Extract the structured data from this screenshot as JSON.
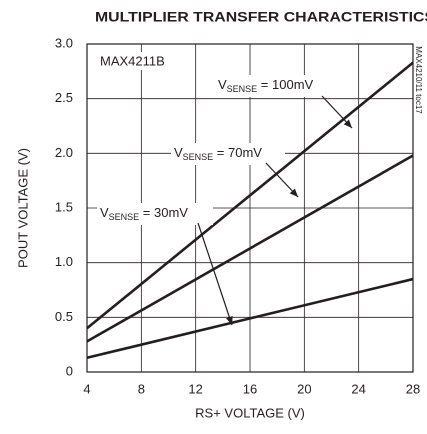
{
  "chart_data": {
    "type": "line",
    "title": "MULTIPLIER TRANSFER CHARACTERISTICS",
    "xlabel": "RS+ VOLTAGE (V)",
    "ylabel": "POUT VOLTAGE (V)",
    "part_label": "MAX4211B",
    "figure_id": "MAX4210/11 toc17",
    "x": [
      4,
      28
    ],
    "xlim": [
      4,
      28
    ],
    "xticks": [
      4,
      8,
      12,
      16,
      20,
      24,
      28
    ],
    "ylim": [
      0,
      3
    ],
    "yticks": [
      0,
      0.5,
      {
        "value": 1,
        "label": "1.0"
      },
      1.5,
      {
        "value": 2,
        "label": "2.0"
      },
      2.5,
      {
        "value": 3,
        "label": "3.0"
      }
    ],
    "grid": true,
    "series": [
      {
        "label": {
          "main": "V",
          "sub": "SENSE",
          "rest": " = 100mV"
        },
        "color": "#231f20",
        "values": [
          0.4,
          2.83
        ]
      },
      {
        "label": {
          "main": "V",
          "sub": "SENSE",
          "rest": " = 70mV"
        },
        "color": "#231f20",
        "values": [
          0.28,
          1.98
        ]
      },
      {
        "label": {
          "main": "V",
          "sub": "SENSE",
          "rest": " = 30mV"
        },
        "color": "#231f20",
        "values": [
          0.13,
          0.85
        ]
      }
    ]
  }
}
